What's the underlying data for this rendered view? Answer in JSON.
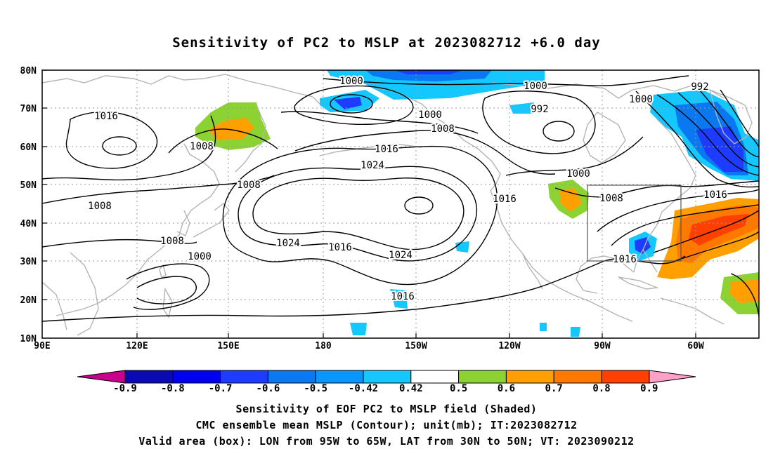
{
  "title": "Sensitivity of PC2 to MSLP at 2023082712 +6.0 day",
  "map": {
    "lat_labels": [
      "80N",
      "70N",
      "60N",
      "50N",
      "40N",
      "30N",
      "20N",
      "10N"
    ],
    "lon_labels": [
      "90E",
      "120E",
      "150E",
      "180",
      "150W",
      "120W",
      "90W",
      "60W"
    ],
    "contour_labels": [
      {
        "text": "1000"
      },
      {
        "text": "1000"
      },
      {
        "text": "992"
      },
      {
        "text": "1000"
      },
      {
        "text": "992"
      },
      {
        "text": "1016"
      },
      {
        "text": "1008"
      },
      {
        "text": "1000"
      },
      {
        "text": "1008"
      },
      {
        "text": "1016"
      },
      {
        "text": "1024"
      },
      {
        "text": "1008"
      },
      {
        "text": "1000"
      },
      {
        "text": "1008"
      },
      {
        "text": "1016"
      },
      {
        "text": "1008"
      },
      {
        "text": "1016"
      },
      {
        "text": "1008"
      },
      {
        "text": "1000"
      },
      {
        "text": "1024"
      },
      {
        "text": "1016"
      },
      {
        "text": "1024"
      },
      {
        "text": "1016"
      },
      {
        "text": "1016"
      }
    ],
    "valid_box": {
      "lon_min": "95W",
      "lon_max": "65W",
      "lat_min": "30N",
      "lat_max": "50N"
    }
  },
  "colorbar": {
    "labels": [
      "-0.9",
      "-0.8",
      "-0.7",
      "-0.6",
      "-0.5",
      "-0.42",
      "0.42",
      "0.5",
      "0.6",
      "0.7",
      "0.8",
      "0.9"
    ],
    "colors": [
      "#c8008c",
      "#0a0ab4",
      "#0000f0",
      "#1e3cff",
      "#0a78f0",
      "#0a96ff",
      "#14c8ff",
      "#ffffff",
      "#8cd232",
      "#ffa000",
      "#ff7800",
      "#ff4000",
      "#ff0000",
      "#ffa0c8"
    ]
  },
  "captions": {
    "line1": "Sensitivity of EOF PC2 to MSLP field (Shaded)",
    "line2": "CMC ensemble mean MSLP (Contour); unit(mb); IT:2023082712",
    "line3": "Valid area (box): LON from 95W to 65W, LAT from 30N to 50N; VT: 2023090212"
  }
}
